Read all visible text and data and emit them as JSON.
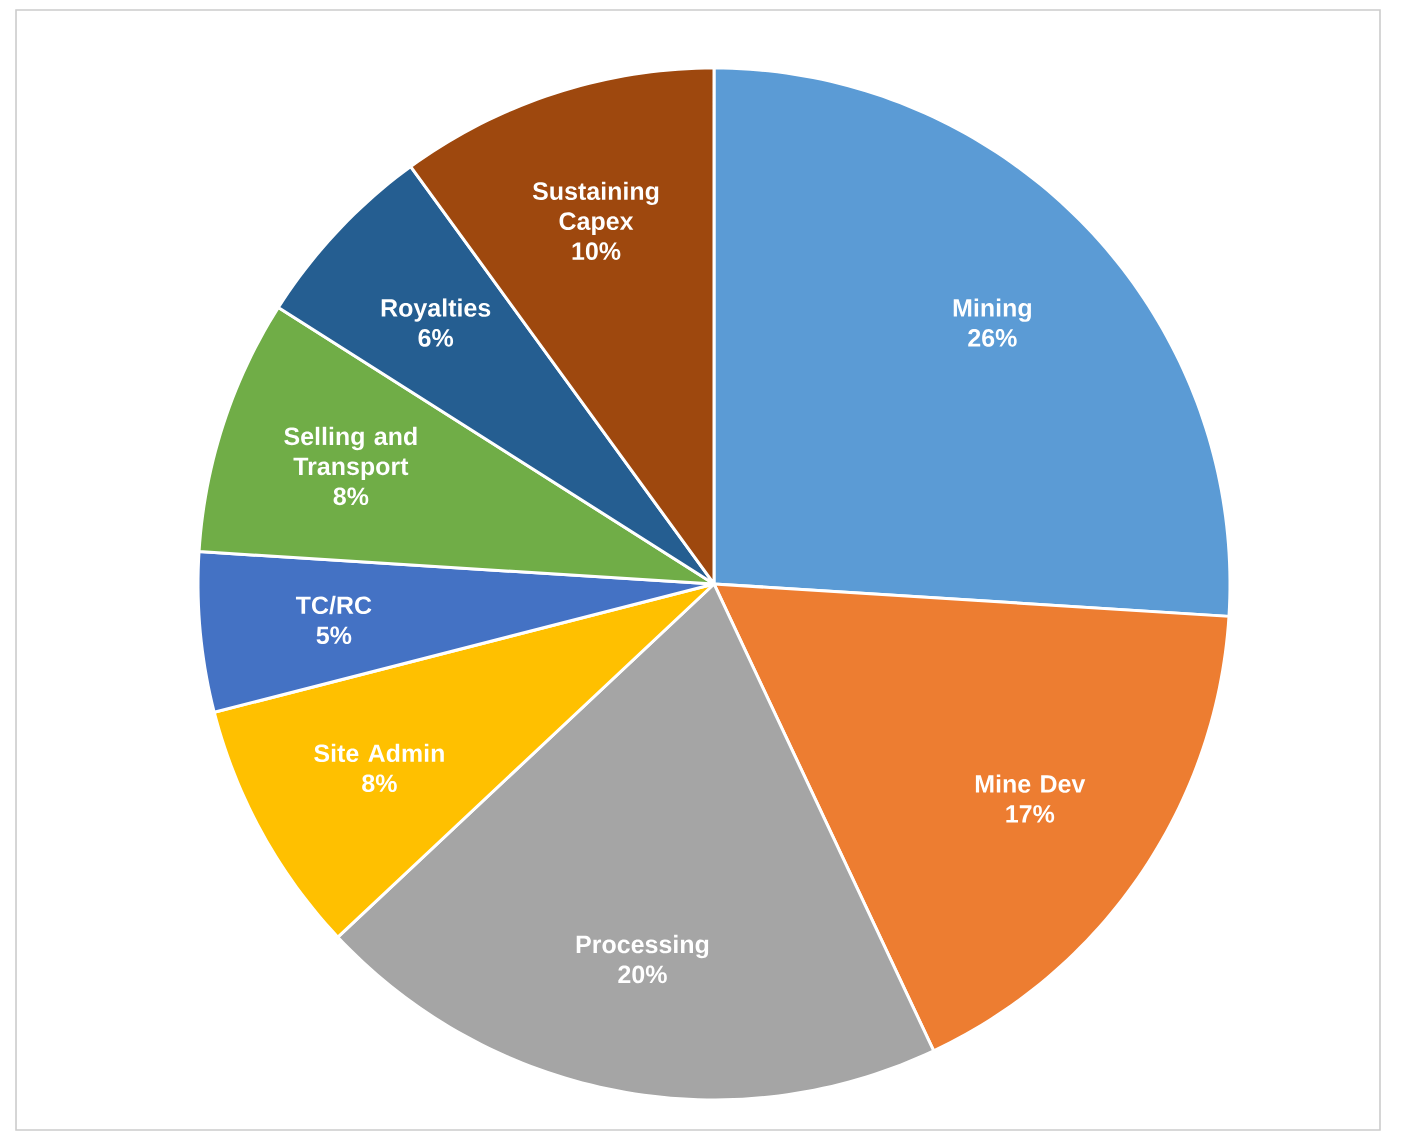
{
  "chart_data": {
    "type": "pie",
    "categories": [
      "Mining",
      "Mine Dev",
      "Processing",
      "Site Admin",
      "TC/RC",
      "Selling and Transport",
      "Royalties",
      "Sustaining Capex"
    ],
    "values": [
      26,
      17,
      20,
      8,
      5,
      8,
      6,
      10
    ],
    "value_labels": [
      "26%",
      "17%",
      "20%",
      "8%",
      "5%",
      "8%",
      "6%",
      "10%"
    ],
    "colors": [
      "#5b9bd5",
      "#ed7d31",
      "#a5a5a5",
      "#ffc000",
      "#4472c4",
      "#70ad47",
      "#255e91",
      "#9e480e"
    ]
  }
}
